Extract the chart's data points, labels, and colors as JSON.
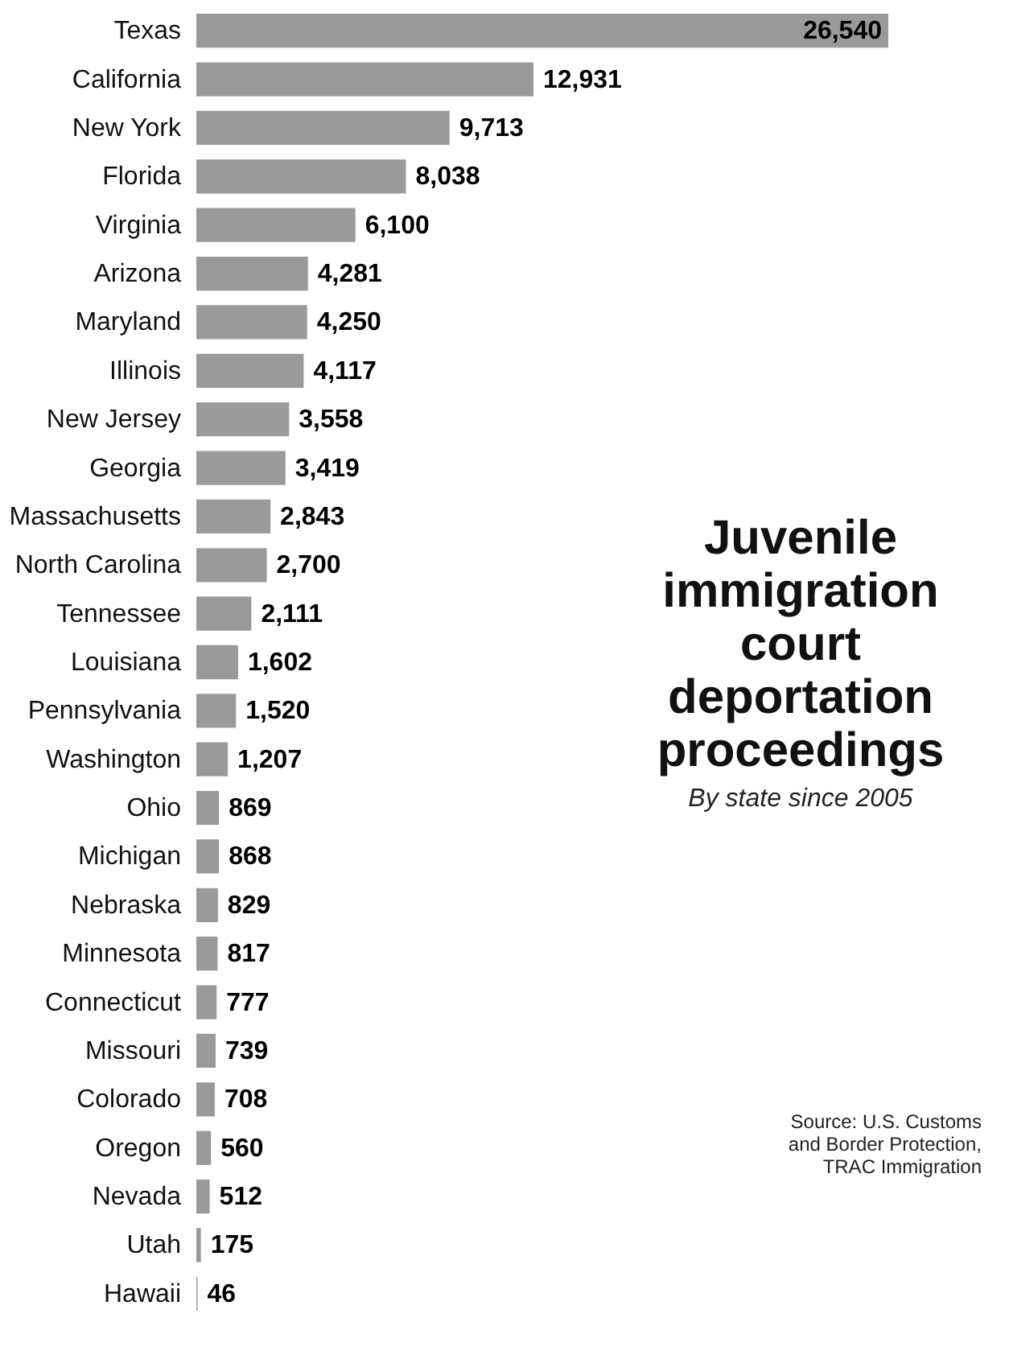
{
  "chart_data": {
    "type": "bar",
    "orientation": "horizontal",
    "title": "Juvenile immigration court deportation proceedings",
    "subtitle": "By state since 2005",
    "categories": [
      "Texas",
      "California",
      "New York",
      "Florida",
      "Virginia",
      "Arizona",
      "Maryland",
      "Illinois",
      "New Jersey",
      "Georgia",
      "Massachusetts",
      "North Carolina",
      "Tennessee",
      "Louisiana",
      "Pennsylvania",
      "Washington",
      "Ohio",
      "Michigan",
      "Nebraska",
      "Minnesota",
      "Connecticut",
      "Missouri",
      "Colorado",
      "Oregon",
      "Nevada",
      "Utah",
      "Hawaii"
    ],
    "values": [
      26540,
      12931,
      9713,
      8038,
      6100,
      4281,
      4250,
      4117,
      3558,
      3419,
      2843,
      2700,
      2111,
      1602,
      1520,
      1207,
      869,
      868,
      829,
      817,
      777,
      739,
      708,
      560,
      512,
      175,
      46
    ],
    "color": "#9a9a9a",
    "value_labels": [
      "26,540",
      "12,931",
      "9,713",
      "8,038",
      "6,100",
      "4,281",
      "4,250",
      "4,117",
      "3,558",
      "3,419",
      "2,843",
      "2,700",
      "2,111",
      "1,602",
      "1,520",
      "1,207",
      "869",
      "868",
      "829",
      "817",
      "777",
      "739",
      "708",
      "560",
      "512",
      "175",
      "46"
    ],
    "annotations": [
      "Source: U.S. Customs and Border Protection, TRAC Immigration"
    ]
  }
}
